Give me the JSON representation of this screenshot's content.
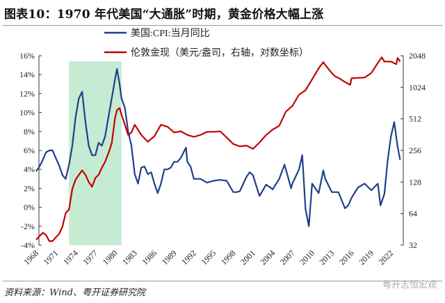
{
  "title": "图表10：1970 年代美国“大通胀”时期，黄金价格大幅上涨",
  "source": "资料来源：Wind、粤开证券研究院",
  "watermark": "粤开志恒宏观",
  "chart_data": {
    "type": "line",
    "xlabel": "",
    "x_ticks": [
      "1968",
      "1971",
      "1974",
      "1977",
      "1980",
      "1983",
      "1986",
      "1989",
      "1992",
      "1995",
      "1998",
      "2001",
      "2004",
      "2007",
      "2010",
      "2013",
      "2016",
      "2019",
      "2022"
    ],
    "y_left": {
      "ticks": [
        "-4%",
        "-2%",
        "0%",
        "2%",
        "4%",
        "6%",
        "8%",
        "10%",
        "12%",
        "14%",
        "16%"
      ],
      "range": [
        -4,
        16
      ]
    },
    "y_right": {
      "ticks": [
        "32",
        "64",
        "128",
        "256",
        "512",
        "1024",
        "2048"
      ],
      "range": [
        32,
        2048
      ],
      "scale": "log2"
    },
    "shaded_period": [
      1973,
      1981
    ],
    "shade_color": "#c6ebd3",
    "legend_placement": "top",
    "series": [
      {
        "name": "美国:CPI:当月同比",
        "axis": "left",
        "color": "#1f3e8c",
        "x": [
          1968,
          1968.5,
          1969,
          1969.5,
          1970,
          1970.5,
          1971,
          1971.5,
          1972,
          1972.5,
          1973,
          1973.5,
          1974,
          1974.5,
          1975,
          1975.5,
          1976,
          1976.5,
          1977,
          1977.5,
          1978,
          1978.5,
          1979,
          1979.5,
          1980,
          1980.3,
          1980.7,
          1981,
          1981.5,
          1982,
          1982.5,
          1983,
          1983.5,
          1984,
          1984.5,
          1985,
          1985.5,
          1986,
          1986.5,
          1987,
          1987.5,
          1988,
          1988.5,
          1989,
          1989.5,
          1990,
          1990.8,
          1991,
          1991.5,
          1992,
          1993,
          1994,
          1995,
          1996,
          1997,
          1998,
          1998.5,
          1999,
          2000,
          2000.5,
          2001,
          2001.8,
          2002,
          2003,
          2004,
          2005,
          2005.8,
          2006,
          2006.8,
          2007,
          2008,
          2008.5,
          2009,
          2009.5,
          2010,
          2011,
          2011.7,
          2012,
          2013,
          2014,
          2015,
          2015.5,
          2016,
          2017,
          2018,
          2019,
          2020,
          2020.4,
          2021,
          2021.5,
          2022,
          2022.5,
          2023,
          2023.4
        ],
        "values": [
          3.8,
          4.3,
          5.0,
          5.8,
          6.0,
          6.0,
          5.2,
          4.4,
          3.4,
          3.0,
          4.5,
          6.5,
          9.5,
          11.5,
          12.2,
          9.0,
          6.5,
          5.5,
          5.5,
          6.8,
          6.5,
          7.5,
          9.5,
          11.5,
          13.5,
          14.6,
          13.0,
          11.5,
          10.5,
          8.0,
          6.5,
          3.5,
          2.5,
          4.2,
          4.3,
          3.5,
          3.7,
          2.5,
          1.5,
          2.5,
          4.0,
          4.0,
          4.2,
          4.8,
          4.8,
          5.2,
          6.3,
          4.8,
          4.3,
          3.0,
          3.0,
          2.6,
          2.8,
          2.9,
          2.8,
          1.6,
          1.6,
          1.7,
          3.2,
          3.7,
          3.4,
          1.6,
          1.2,
          2.4,
          1.9,
          3.0,
          4.5,
          4.0,
          2.0,
          2.5,
          4.0,
          5.5,
          -0.2,
          -2.0,
          2.5,
          1.5,
          3.9,
          3.0,
          1.6,
          1.6,
          -0.1,
          0.2,
          1.0,
          2.1,
          2.5,
          1.8,
          2.5,
          0.2,
          1.4,
          5.0,
          7.5,
          9.0,
          6.4,
          5.0
        ]
      },
      {
        "name": "伦敦金现（美元/盎司，右轴，对数坐标）",
        "axis": "right",
        "color": "#c00000",
        "x": [
          1968,
          1968.5,
          1969,
          1969.5,
          1970,
          1970.5,
          1971,
          1971.5,
          1972,
          1972.5,
          1973,
          1973.5,
          1974,
          1974.5,
          1975,
          1975.5,
          1976,
          1976.5,
          1977,
          1977.5,
          1978,
          1978.5,
          1979,
          1979.5,
          1980,
          1980.3,
          1980.7,
          1981,
          1981.5,
          1982,
          1982.5,
          1983,
          1984,
          1985,
          1986,
          1987,
          1988,
          1989,
          1990,
          1991,
          1992,
          1993,
          1994,
          1995,
          1996,
          1997,
          1998,
          1999,
          2000,
          2001,
          2002,
          2003,
          2004,
          2005,
          2006,
          2007,
          2008,
          2009,
          2010,
          2011,
          2011.7,
          2012,
          2013,
          2013.5,
          2014,
          2015,
          2015.8,
          2016,
          2017,
          2018,
          2019,
          2020,
          2020.6,
          2021,
          2022,
          2022.8,
          2023,
          2023.4
        ],
        "values": [
          36,
          39,
          42,
          40,
          35,
          35,
          38,
          41,
          48,
          65,
          70,
          110,
          135,
          150,
          165,
          150,
          128,
          115,
          140,
          150,
          175,
          200,
          240,
          300,
          520,
          620,
          650,
          560,
          450,
          360,
          380,
          450,
          360,
          310,
          350,
          450,
          430,
          380,
          390,
          360,
          345,
          360,
          385,
          385,
          390,
          340,
          295,
          280,
          285,
          265,
          305,
          360,
          405,
          440,
          600,
          680,
          870,
          960,
          1220,
          1550,
          1780,
          1670,
          1400,
          1300,
          1260,
          1150,
          1080,
          1250,
          1260,
          1270,
          1400,
          1750,
          1980,
          1800,
          1800,
          1700,
          1950,
          1800
        ]
      }
    ]
  }
}
